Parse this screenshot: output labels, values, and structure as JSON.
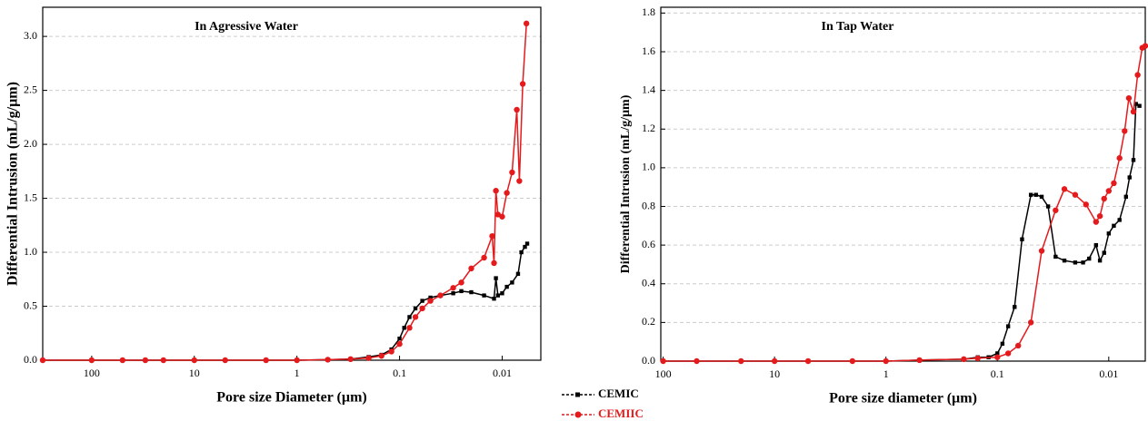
{
  "chart_data": [
    {
      "type": "line",
      "title": "In Agressive Water",
      "xlabel": "Pore size Diameter (µm)",
      "ylabel": "Differential Intrusion (mL/g/µm)",
      "log_x": true,
      "grid": true,
      "xlim": [
        300,
        0.0042
      ],
      "xticks": [
        100,
        10,
        1,
        0.1,
        0.01
      ],
      "ylim": [
        0,
        3.27
      ],
      "yticks": [
        {
          "value": 0,
          "label": "0.0"
        },
        0.5,
        {
          "value": 1,
          "label": "1.0"
        },
        1.5,
        {
          "value": 2,
          "label": "2.0"
        },
        2.5,
        {
          "value": 3,
          "label": "3.0"
        }
      ],
      "series": [
        {
          "color": "#000000",
          "marker": "square",
          "x": [
            300,
            100,
            50,
            30,
            20,
            10,
            5,
            2,
            1,
            0.5,
            0.3,
            0.2,
            0.15,
            0.12,
            0.1,
            0.09,
            0.08,
            0.07,
            0.06,
            0.05,
            0.04,
            0.03,
            0.025,
            0.02,
            0.015,
            0.012,
            0.0115,
            0.011,
            0.01,
            0.009,
            0.008,
            0.007,
            0.0065,
            0.006,
            0.0057
          ],
          "values": [
            0,
            0,
            0,
            0,
            0,
            0,
            0,
            0,
            0,
            0.005,
            0.01,
            0.03,
            0.05,
            0.1,
            0.2,
            0.3,
            0.4,
            0.48,
            0.55,
            0.58,
            0.6,
            0.62,
            0.64,
            0.63,
            0.6,
            0.57,
            0.76,
            0.6,
            0.62,
            0.68,
            0.72,
            0.8,
            1.0,
            1.05,
            1.08
          ]
        },
        {
          "color": "#e41a1c",
          "marker": "circle",
          "x": [
            300,
            100,
            50,
            30,
            20,
            10,
            5,
            2,
            1,
            0.5,
            0.3,
            0.2,
            0.15,
            0.12,
            0.1,
            0.08,
            0.07,
            0.06,
            0.05,
            0.04,
            0.03,
            0.025,
            0.02,
            0.015,
            0.0125,
            0.012,
            0.0115,
            0.011,
            0.01,
            0.009,
            0.008,
            0.0072,
            0.0068,
            0.0063,
            0.0058
          ],
          "values": [
            0,
            0,
            0,
            0,
            0,
            0,
            0,
            0,
            0,
            0.005,
            0.01,
            0.02,
            0.04,
            0.08,
            0.15,
            0.3,
            0.4,
            0.48,
            0.55,
            0.6,
            0.67,
            0.72,
            0.85,
            0.95,
            1.15,
            0.9,
            1.57,
            1.35,
            1.33,
            1.55,
            1.74,
            2.32,
            1.66,
            2.56,
            3.12
          ]
        }
      ]
    },
    {
      "type": "line",
      "title": "In Tap Water",
      "xlabel": "Pore size diameter (µm)",
      "ylabel": "Differential Intrusion (mL/g/µm)",
      "log_x": true,
      "grid": true,
      "xlim": [
        105,
        0.0047
      ],
      "xticks": [
        100,
        10,
        1,
        0.1,
        0.01
      ],
      "ylim": [
        0,
        1.83
      ],
      "yticks": [
        {
          "value": 0,
          "label": "0.0"
        },
        0.2,
        0.4,
        0.6,
        0.8,
        {
          "value": 1,
          "label": "1.0"
        },
        1.2,
        1.4,
        1.6,
        1.8
      ],
      "series": [
        {
          "name": "CEMIC",
          "color": "#000000",
          "marker": "square",
          "x": [
            100,
            50,
            20,
            10,
            5,
            2,
            1,
            0.5,
            0.2,
            0.15,
            0.12,
            0.1,
            0.09,
            0.08,
            0.07,
            0.06,
            0.05,
            0.045,
            0.04,
            0.035,
            0.03,
            0.025,
            0.02,
            0.017,
            0.015,
            0.013,
            0.012,
            0.011,
            0.01,
            0.009,
            0.008,
            0.007,
            0.0065,
            0.006,
            0.0057,
            0.0053
          ],
          "values": [
            0,
            0,
            0,
            0,
            0,
            0,
            0,
            0.005,
            0.01,
            0.02,
            0.02,
            0.04,
            0.09,
            0.18,
            0.28,
            0.63,
            0.86,
            0.86,
            0.85,
            0.8,
            0.54,
            0.52,
            0.51,
            0.51,
            0.53,
            0.6,
            0.52,
            0.56,
            0.66,
            0.7,
            0.73,
            0.85,
            0.95,
            1.04,
            1.33,
            1.32
          ]
        },
        {
          "name": "CEMIIC",
          "color": "#e41a1c",
          "marker": "circle",
          "x": [
            100,
            50,
            20,
            10,
            5,
            2,
            1,
            0.5,
            0.2,
            0.15,
            0.1,
            0.08,
            0.065,
            0.05,
            0.04,
            0.03,
            0.025,
            0.02,
            0.016,
            0.013,
            0.012,
            0.011,
            0.01,
            0.009,
            0.008,
            0.0072,
            0.0066,
            0.006,
            0.0055,
            0.005,
            0.0047
          ],
          "values": [
            0,
            0,
            0,
            0,
            0,
            0,
            0,
            0.005,
            0.01,
            0.015,
            0.02,
            0.04,
            0.08,
            0.2,
            0.57,
            0.78,
            0.89,
            0.86,
            0.81,
            0.72,
            0.75,
            0.84,
            0.88,
            0.92,
            1.05,
            1.19,
            1.36,
            1.29,
            1.48,
            1.62,
            1.63
          ]
        }
      ]
    }
  ]
}
